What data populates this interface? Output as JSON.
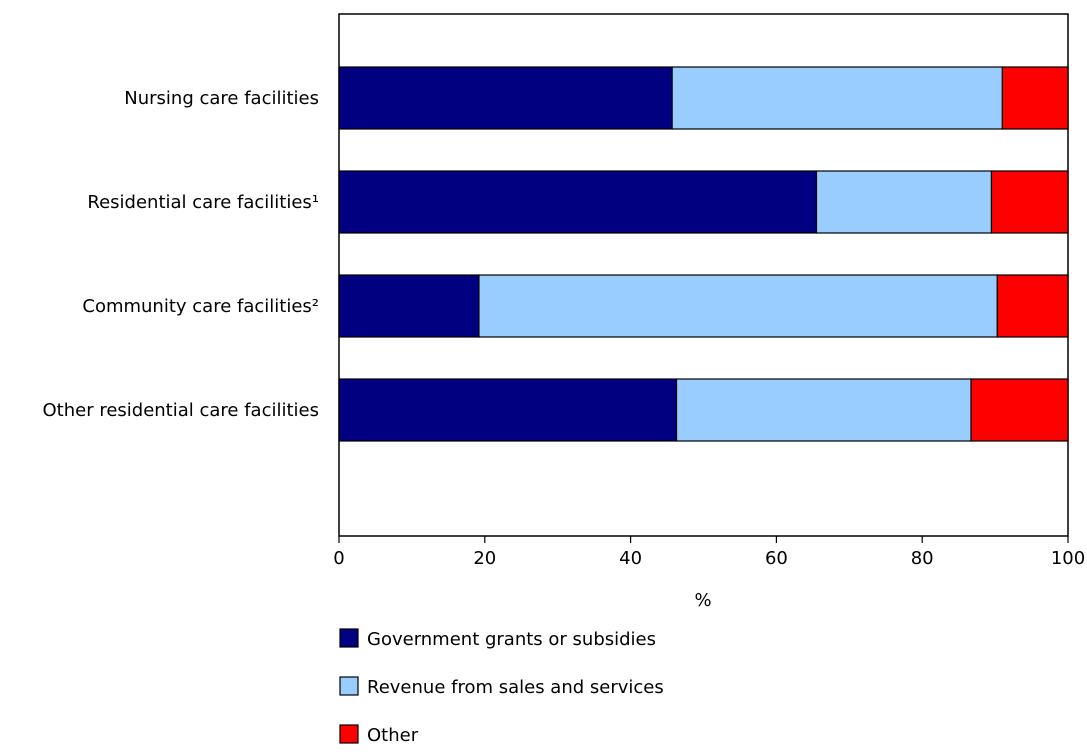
{
  "chart_data": {
    "type": "bar",
    "orientation": "horizontal",
    "stacked": true,
    "categories": [
      "Nursing care facilities",
      "Residential care facilities¹",
      "Community care facilities²",
      "Other residential care facilities"
    ],
    "series": [
      {
        "name": "Government grants or subsidies",
        "values": [
          45.7,
          65.5,
          19.2,
          46.3
        ],
        "color": "#000080"
      },
      {
        "name": "Revenue from sales and services",
        "values": [
          45.3,
          24.0,
          71.1,
          40.4
        ],
        "color": "#99ccff"
      },
      {
        "name": "Other",
        "values": [
          9.0,
          10.5,
          9.7,
          13.3
        ],
        "color": "#ff0000"
      }
    ],
    "xlabel": "%",
    "ylabel": "",
    "xlim": [
      0,
      100
    ],
    "xticks": [
      0,
      20,
      40,
      60,
      80,
      100
    ],
    "grid": false,
    "legend_position": "bottom"
  }
}
